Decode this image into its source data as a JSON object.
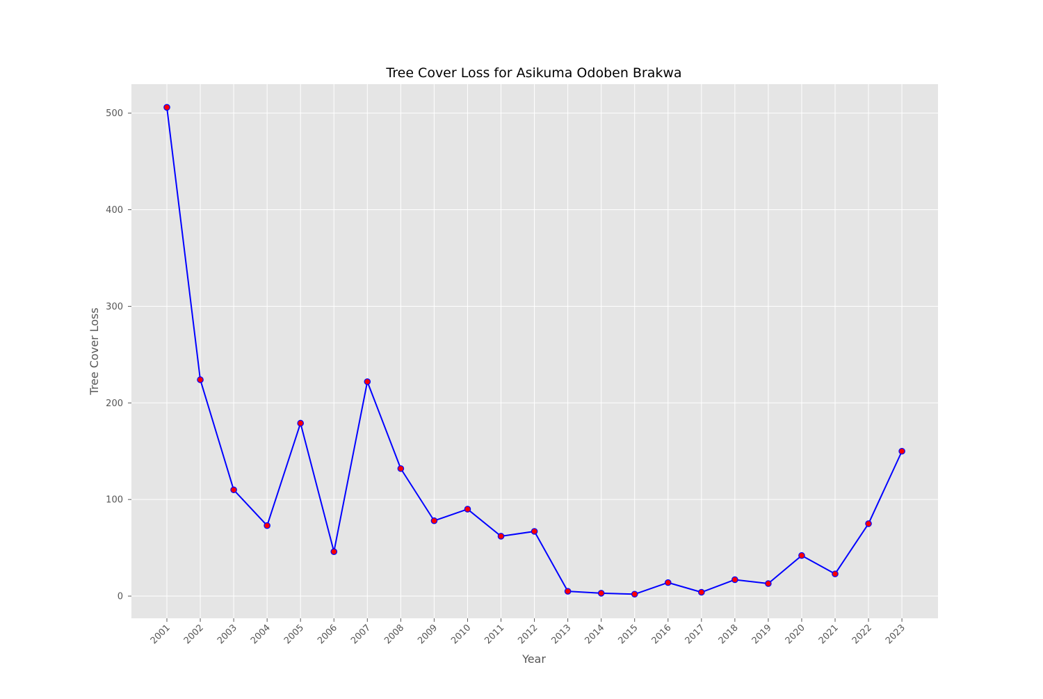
{
  "chart_data": {
    "type": "line",
    "title": "Tree Cover Loss for Asikuma Odoben Brakwa",
    "xlabel": "Year",
    "ylabel": "Tree Cover Loss",
    "categories": [
      "2001",
      "2002",
      "2003",
      "2004",
      "2005",
      "2006",
      "2007",
      "2008",
      "2009",
      "2010",
      "2011",
      "2012",
      "2013",
      "2014",
      "2015",
      "2016",
      "2017",
      "2018",
      "2019",
      "2020",
      "2021",
      "2022",
      "2023"
    ],
    "series": [
      {
        "values": [
          506,
          224,
          110,
          73,
          179,
          46,
          222,
          132,
          78,
          90,
          62,
          67,
          5,
          3,
          2,
          14,
          4,
          17,
          13,
          42,
          23,
          75,
          150
        ]
      }
    ],
    "yticks": [
      "0",
      "100",
      "200",
      "300",
      "400",
      "500"
    ],
    "ylim": [
      -23,
      530
    ],
    "grid": true,
    "legend": "none",
    "colors": {
      "plot_background": "#e5e5e5",
      "grid": "#ffffff",
      "line": "#0000ff",
      "marker_fill": "#ff0000",
      "marker_edge": "#0000ff"
    }
  }
}
